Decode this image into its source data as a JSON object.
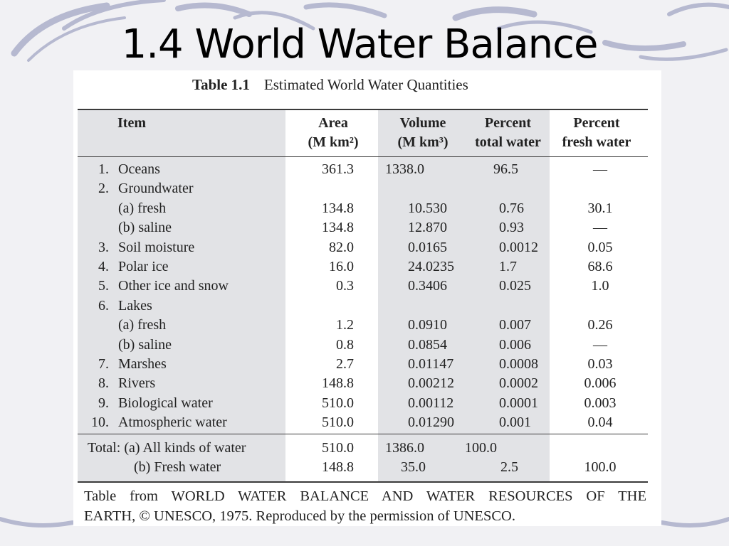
{
  "slide": {
    "title": "1.4 World Water Balance"
  },
  "table": {
    "label": "Table 1.1",
    "caption": "Estimated World Water Quantities",
    "headers": {
      "item": "Item",
      "area_line1": "Area",
      "area_line2": "(M km²)",
      "volume_line1": "Volume",
      "volume_line2": "(M km³)",
      "pct_total_line1": "Percent",
      "pct_total_line2": "total water",
      "pct_fresh_line1": "Percent",
      "pct_fresh_line2": "fresh water"
    },
    "rows": [
      {
        "num": "1.",
        "item": "Oceans",
        "area": "361.3",
        "volume": "1338.0",
        "pct_total": "96.5",
        "pct_fresh": "—"
      },
      {
        "num": "2.",
        "item": "Groundwater",
        "area": "",
        "volume": "",
        "pct_total": "",
        "pct_fresh": ""
      },
      {
        "num": "",
        "item": "(a)  fresh",
        "area": "134.8",
        "volume": "10.530",
        "pct_total": "0.76",
        "pct_fresh": "30.1"
      },
      {
        "num": "",
        "item": "(b)  saline",
        "area": "134.8",
        "volume": "12.870",
        "pct_total": "0.93",
        "pct_fresh": "—"
      },
      {
        "num": "3.",
        "item": "Soil moisture",
        "area": "82.0",
        "volume": "0.0165",
        "pct_total": "0.0012",
        "pct_fresh": "0.05"
      },
      {
        "num": "4.",
        "item": "Polar ice",
        "area": "16.0",
        "volume": "24.0235",
        "pct_total": "1.7",
        "pct_fresh": "68.6"
      },
      {
        "num": "5.",
        "item": "Other ice and snow",
        "area": "0.3",
        "volume": "0.3406",
        "pct_total": "0.025",
        "pct_fresh": "1.0"
      },
      {
        "num": "6.",
        "item": "Lakes",
        "area": "",
        "volume": "",
        "pct_total": "",
        "pct_fresh": ""
      },
      {
        "num": "",
        "item": "(a)  fresh",
        "area": "1.2",
        "volume": "0.0910",
        "pct_total": "0.007",
        "pct_fresh": "0.26"
      },
      {
        "num": "",
        "item": "(b)  saline",
        "area": "0.8",
        "volume": "0.0854",
        "pct_total": "0.006",
        "pct_fresh": "—"
      },
      {
        "num": "7.",
        "item": "Marshes",
        "area": "2.7",
        "volume": "0.01147",
        "pct_total": "0.0008",
        "pct_fresh": "0.03"
      },
      {
        "num": "8.",
        "item": "Rivers",
        "area": "148.8",
        "volume": "0.00212",
        "pct_total": "0.0002",
        "pct_fresh": "0.006"
      },
      {
        "num": "9.",
        "item": "Biological water",
        "area": "510.0",
        "volume": "0.00112",
        "pct_total": "0.0001",
        "pct_fresh": "0.003"
      },
      {
        "num": "10.",
        "item": "Atmospheric water",
        "area": "510.0",
        "volume": "0.01290",
        "pct_total": "0.001",
        "pct_fresh": "0.04"
      }
    ],
    "totals": [
      {
        "label": "Total:  (a)  All kinds of water",
        "area": "510.0",
        "volume": "1386.0",
        "pct_total": "100.0",
        "pct_fresh": ""
      },
      {
        "label": "(b)  Fresh water",
        "area": "148.8",
        "volume": "35.0",
        "pct_total": "2.5",
        "pct_fresh": "100.0"
      }
    ],
    "footnote_line1": "Table from WORLD WATER BALANCE AND WATER RESOURCES OF THE",
    "footnote_line2": "EARTH, © UNESCO, 1975. Reproduced by the permission of UNESCO."
  },
  "colors": {
    "background": "#f1f1f4",
    "swirl": "#a9adc6",
    "shaded_column": "#e2e3e6",
    "rule": "#3a3a3a"
  }
}
